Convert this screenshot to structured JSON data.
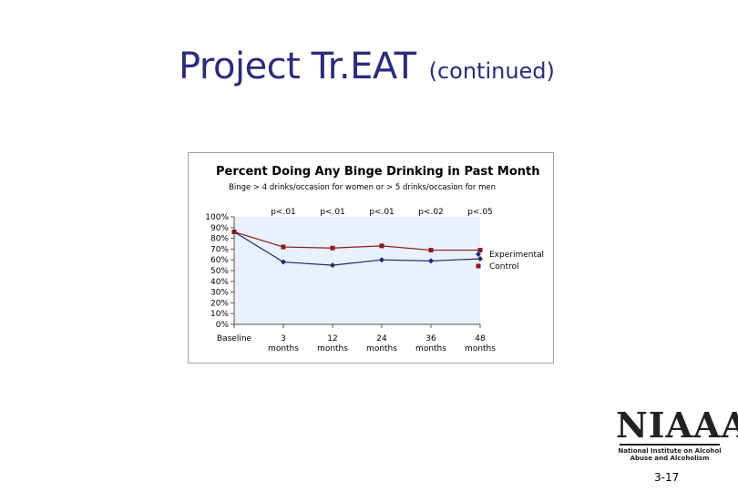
{
  "slide": {
    "title": "Project Tr.EAT",
    "subtitle": "(continued)",
    "page_number": "3-17"
  },
  "logo": {
    "word": "NIAAA",
    "line1": "National Institute on Alcohol",
    "line2": "Abuse and Alcoholism"
  },
  "chart_data": {
    "type": "line",
    "title": "Percent Doing Any Binge Drinking in Past Month",
    "subtitle": "Binge > 4 drinks/occasion for women or > 5 drinks/occasion for men",
    "x_tick_lines": [
      [
        "Baseline",
        ""
      ],
      [
        "3",
        "months"
      ],
      [
        "12",
        "months"
      ],
      [
        "24",
        "months"
      ],
      [
        "36",
        "months"
      ],
      [
        "48",
        "months"
      ]
    ],
    "categories": [
      "Baseline",
      "3 months",
      "12 months",
      "24 months",
      "36 months",
      "48 months"
    ],
    "y_ticks": [
      "100%",
      "90%",
      "80%",
      "70%",
      "60%",
      "50%",
      "40%",
      "30%",
      "20%",
      "10%",
      "0%"
    ],
    "ylim": [
      0,
      100
    ],
    "grid": false,
    "legend_position": "right",
    "p_values": [
      "p<.01",
      "p<.01",
      "p<.01",
      "p<.02",
      "p<.05"
    ],
    "series": [
      {
        "name": "Experimental",
        "values": [
          86,
          58,
          55,
          60,
          59,
          61
        ],
        "color": "#1f2a6e",
        "marker": "diamond"
      },
      {
        "name": "Control",
        "values": [
          86,
          72,
          71,
          73,
          69,
          69
        ],
        "color": "#8b1a1a",
        "marker": "square"
      }
    ],
    "plot_background": "#e8f0fb"
  }
}
